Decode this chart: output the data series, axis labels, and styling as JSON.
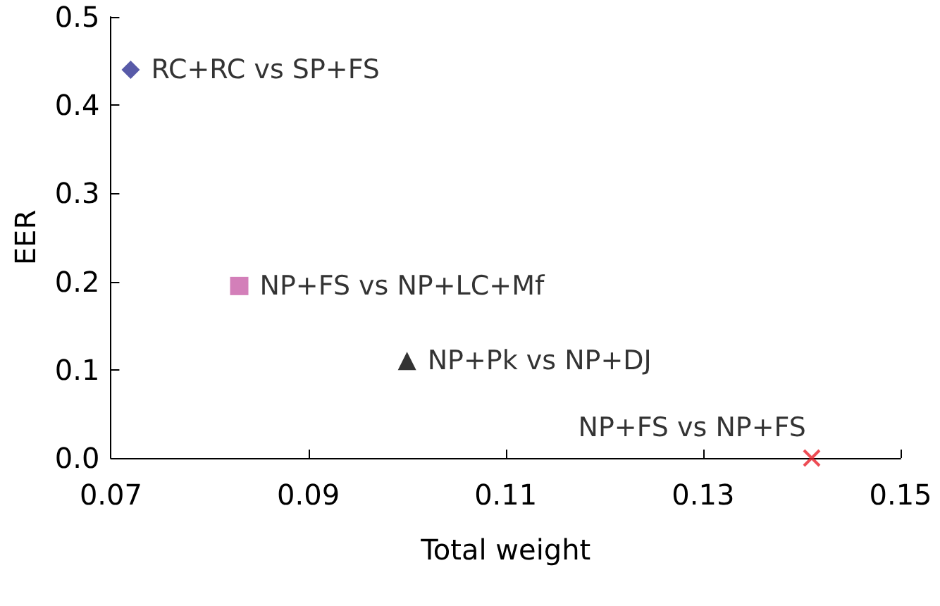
{
  "chart_data": {
    "type": "scatter",
    "xlabel": "Total weight",
    "ylabel": "EER",
    "series": [
      {
        "name": "RC+RC vs SP+FS",
        "color": "#2e3192",
        "marker": "diamond",
        "x": [
          0.072
        ],
        "values": [
          0.44
        ]
      },
      {
        "name": "NP+FS vs NP+LC+Mf",
        "color": "#c85fa8",
        "marker": "square",
        "x": [
          0.083
        ],
        "values": [
          0.195
        ]
      },
      {
        "name": "NP+Pk vs NP+DJ",
        "color": "#000000",
        "marker": "triangle",
        "x": [
          0.1
        ],
        "values": [
          0.11
        ]
      },
      {
        "name": "NP+FS vs NP+FS",
        "color": "#e8202a",
        "marker": "cross",
        "x": [
          0.141
        ],
        "values": [
          0.0
        ]
      }
    ],
    "xlim": [
      0.07,
      0.15
    ],
    "xticks": [
      0.07,
      0.09,
      0.11,
      0.13,
      0.15
    ],
    "ylim": [
      0,
      0.5
    ],
    "yticks": [
      {
        "value": 0,
        "label": "0.0"
      },
      0.1,
      0.2,
      0.3,
      0.4,
      0.5
    ],
    "grid": false,
    "legend": false
  }
}
